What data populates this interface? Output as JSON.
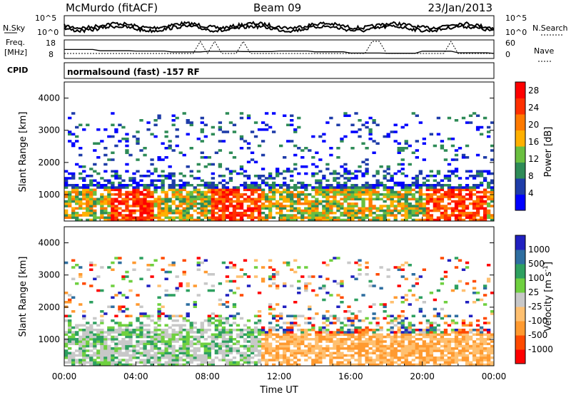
{
  "header": {
    "station": "McMurdo (fitACF)",
    "beam": "Beam 09",
    "date": "23/Jan/2013"
  },
  "panel_labels": {
    "nsky": "N.Sky",
    "nsearch": "N.Search",
    "freq": "Freq.",
    "freq_unit": "[MHz]",
    "nave": "Nave",
    "cpid": "CPID",
    "cpid_value": "normalsound (fast) -157 RF"
  },
  "noise_axis": {
    "top_left": "10^5",
    "bottom_left": "10^0",
    "top_right": "10^5",
    "bottom_right": "10^0"
  },
  "freq_axis": {
    "left_ticks": [
      "18",
      "8"
    ],
    "right_ticks": [
      "60",
      "0"
    ]
  },
  "colors": {
    "power_scale": [
      "#0000ff",
      "#1e3ca8",
      "#2e8b57",
      "#6abf40",
      "#ffb000",
      "#ff7a00",
      "#ff3000",
      "#ff0000"
    ],
    "velocity_scale": [
      "#ff0000",
      "#ff4a00",
      "#ff9a30",
      "#ffc070",
      "#c8c8c8",
      "#6fd040",
      "#2ea060",
      "#2e6ea0",
      "#2020c0"
    ]
  },
  "chart_data": [
    {
      "type": "heatmap",
      "title": "",
      "xlabel": "Time UT",
      "ylabel": "Slant Range [km]",
      "xlim": [
        0,
        24
      ],
      "ylim": [
        180,
        4500
      ],
      "x_ticks": [
        "00:00",
        "04:00",
        "08:00",
        "12:00",
        "16:00",
        "20:00",
        "00:00"
      ],
      "y_ticks": [
        1000,
        2000,
        3000,
        4000
      ],
      "colorbar": {
        "label": "Power [dB]",
        "ticks": [
          4,
          8,
          12,
          16,
          20,
          24,
          28
        ],
        "range": [
          0,
          30
        ]
      },
      "bands": [
        {
          "t0": 0,
          "t1": 24,
          "r0": 180,
          "r1": 1200,
          "value": 16,
          "note": "near-range scatter"
        },
        {
          "t0": 8,
          "t1": 11,
          "r0": 500,
          "r1": 1100,
          "value": 27
        },
        {
          "t0": 20,
          "t1": 24,
          "r0": 600,
          "r1": 1000,
          "value": 22
        }
      ]
    },
    {
      "type": "heatmap",
      "title": "",
      "xlabel": "Time UT",
      "ylabel": "Slant Range [km]",
      "xlim": [
        0,
        24
      ],
      "ylim": [
        180,
        4500
      ],
      "x_ticks": [
        "00:00",
        "04:00",
        "08:00",
        "12:00",
        "16:00",
        "20:00",
        "00:00"
      ],
      "y_ticks": [
        1000,
        2000,
        3000,
        4000
      ],
      "colorbar": {
        "label": "Velocity [m s^-1]",
        "ticks": [
          "1000",
          "500",
          "100",
          "25",
          "-25",
          "-100",
          "-500",
          "-1000"
        ]
      },
      "bands": [
        {
          "t0": 0,
          "t1": 11,
          "r0": 300,
          "r1": 1700,
          "value": 100,
          "note": "green/grey band"
        },
        {
          "t0": 11,
          "t1": 24,
          "r0": 400,
          "r1": 1000,
          "value": -100,
          "note": "orange band"
        },
        {
          "t0": 20,
          "t1": 24,
          "r0": 500,
          "r1": 1300,
          "value": -300
        }
      ]
    }
  ]
}
